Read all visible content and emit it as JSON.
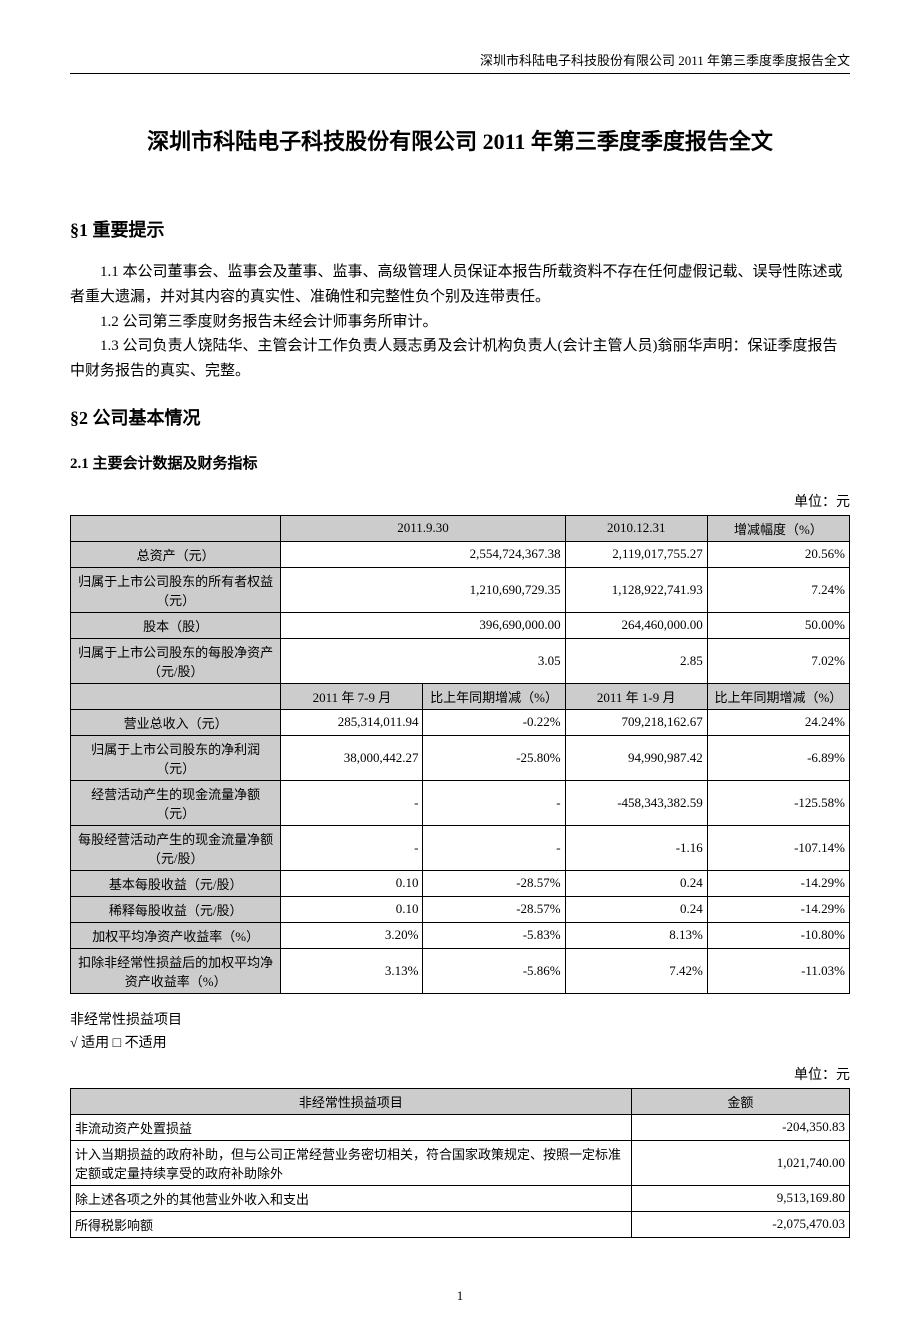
{
  "header": {
    "running": "深圳市科陆电子科技股份有限公司 2011 年第三季度季度报告全文"
  },
  "title": "深圳市科陆电子科技股份有限公司 2011 年第三季度季度报告全文",
  "section1": {
    "heading": "§1 重要提示",
    "p1": "1.1 本公司董事会、监事会及董事、监事、高级管理人员保证本报告所载资料不存在任何虚假记载、误导性陈述或者重大遗漏，并对其内容的真实性、准确性和完整性负个别及连带责任。",
    "p2": "1.2 公司第三季度财务报告未经会计师事务所审计。",
    "p3": "1.3 公司负责人饶陆华、主管会计工作负责人聂志勇及会计机构负责人(会计主管人员)翁丽华声明：保证季度报告中财务报告的真实、完整。"
  },
  "section2": {
    "heading": "§2 公司基本情况",
    "sub21": "2.1 主要会计数据及财务指标",
    "unit": "单位：元",
    "table1": {
      "hdr_top": [
        "",
        "2011.9.30",
        "2010.12.31",
        "增减幅度（%）"
      ],
      "rows_top": [
        {
          "label": "总资产（元）",
          "a": "2,554,724,367.38",
          "b": "2,119,017,755.27",
          "c": "20.56%"
        },
        {
          "label": "归属于上市公司股东的所有者权益（元）",
          "a": "1,210,690,729.35",
          "b": "1,128,922,741.93",
          "c": "7.24%"
        },
        {
          "label": "股本（股）",
          "a": "396,690,000.00",
          "b": "264,460,000.00",
          "c": "50.00%"
        },
        {
          "label": "归属于上市公司股东的每股净资产（元/股）",
          "a": "3.05",
          "b": "2.85",
          "c": "7.02%"
        }
      ],
      "hdr_bot": [
        "",
        "2011 年 7-9 月",
        "比上年同期增减（%）",
        "2011 年 1-9 月",
        "比上年同期增减（%）"
      ],
      "rows_bot": [
        {
          "label": "营业总收入（元）",
          "a": "285,314,011.94",
          "b": "-0.22%",
          "c": "709,218,162.67",
          "d": "24.24%"
        },
        {
          "label": "归属于上市公司股东的净利润（元）",
          "a": "38,000,442.27",
          "b": "-25.80%",
          "c": "94,990,987.42",
          "d": "-6.89%"
        },
        {
          "label": "经营活动产生的现金流量净额（元）",
          "a": "-",
          "b": "-",
          "c": "-458,343,382.59",
          "d": "-125.58%"
        },
        {
          "label": "每股经营活动产生的现金流量净额（元/股）",
          "a": "-",
          "b": "-",
          "c": "-1.16",
          "d": "-107.14%"
        },
        {
          "label": "基本每股收益（元/股）",
          "a": "0.10",
          "b": "-28.57%",
          "c": "0.24",
          "d": "-14.29%"
        },
        {
          "label": "稀释每股收益（元/股）",
          "a": "0.10",
          "b": "-28.57%",
          "c": "0.24",
          "d": "-14.29%"
        },
        {
          "label": "加权平均净资产收益率（%）",
          "a": "3.20%",
          "b": "-5.83%",
          "c": "8.13%",
          "d": "-10.80%"
        },
        {
          "label": "扣除非经常性损益后的加权平均净资产收益率（%）",
          "a": "3.13%",
          "b": "-5.86%",
          "c": "7.42%",
          "d": "-11.03%"
        }
      ]
    },
    "note1": "非经常性损益项目",
    "note2": "√ 适用 □ 不适用",
    "unit2": "单位：元",
    "table2": {
      "hdr": [
        "非经常性损益项目",
        "金额"
      ],
      "rows": [
        {
          "label": "非流动资产处置损益",
          "v": "-204,350.83"
        },
        {
          "label": "计入当期损益的政府补助，但与公司正常经营业务密切相关，符合国家政策规定、按照一定标准定额或定量持续享受的政府补助除外",
          "v": "1,021,740.00"
        },
        {
          "label": "除上述各项之外的其他营业外收入和支出",
          "v": "9,513,169.80"
        },
        {
          "label": "所得税影响额",
          "v": "-2,075,470.03"
        }
      ]
    }
  },
  "pagenum": "1"
}
